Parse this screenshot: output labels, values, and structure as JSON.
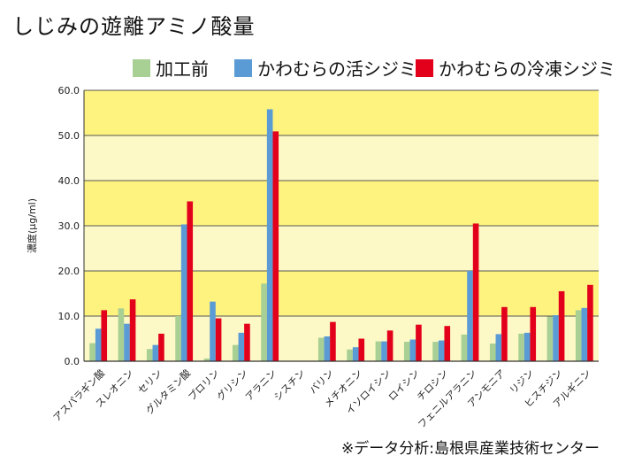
{
  "title": "しじみの遊離アミノ酸量",
  "source": "※データ分析:島根県産業技術センター",
  "colors": {
    "processed": "#a8cf94",
    "live": "#5b9bd5",
    "frozen": "#e3001b",
    "band_light": "#fdf9c6",
    "band_dark": "#fef37f"
  },
  "chart_data": {
    "type": "bar",
    "ylabel": "濃度(μg/ml)",
    "ylim": [
      0,
      60
    ],
    "yticks": [
      "0.0",
      "10.0",
      "20.0",
      "30.0",
      "40.0",
      "50.0",
      "60.0"
    ],
    "grid": true,
    "legend_position": "top",
    "categories": [
      "アスパラギン酸",
      "スレオニン",
      "セリン",
      "グルタミン酸",
      "プロリン",
      "グリシン",
      "アラニン",
      "シスチン",
      "バリン",
      "メチオニン",
      "イソロイシン",
      "ロイシン",
      "チロシン",
      "フェニルアラニン",
      "アンモニア",
      "リジン",
      "ヒスチジン",
      "アルギニン"
    ],
    "series": [
      {
        "name": "加工前",
        "values": [
          4.0,
          11.7,
          2.7,
          10.0,
          0.6,
          3.6,
          17.2,
          0.0,
          5.2,
          2.6,
          4.4,
          4.3,
          4.3,
          5.9,
          3.9,
          6.1,
          9.9,
          11.3
        ]
      },
      {
        "name": "かわむらの活シジミ",
        "values": [
          7.2,
          8.3,
          3.6,
          30.3,
          13.2,
          6.3,
          55.8,
          0.0,
          5.5,
          3.1,
          4.4,
          4.8,
          4.6,
          20.0,
          6.0,
          6.3,
          10.2,
          11.8
        ]
      },
      {
        "name": "かわむらの冷凍シジミ",
        "values": [
          11.3,
          13.7,
          6.1,
          35.4,
          9.5,
          8.3,
          50.9,
          0.0,
          8.7,
          5.0,
          6.8,
          8.1,
          7.8,
          30.5,
          12.0,
          12.0,
          15.5,
          16.9
        ]
      }
    ]
  }
}
